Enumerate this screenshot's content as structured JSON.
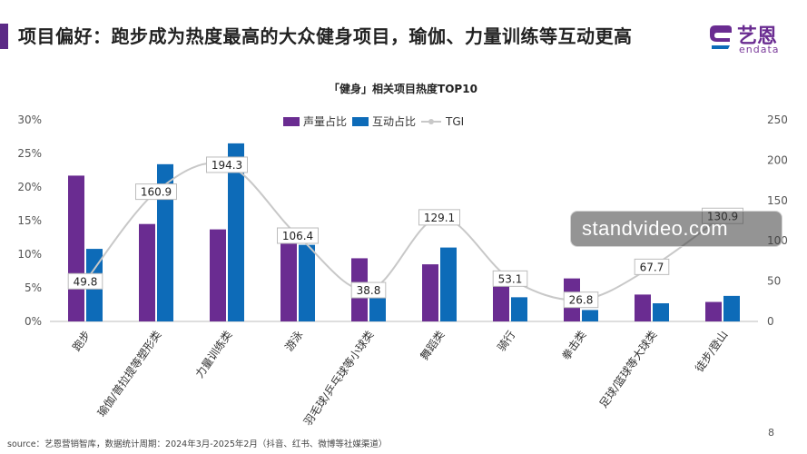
{
  "header": {
    "title": "项目偏好：跑步成为热度最高的大众健身项目，瑜伽、力量训练等互动更高",
    "accent_color": "#5b2a86"
  },
  "logo": {
    "name": "艺恩",
    "subtitle": "endata",
    "icon": "endata-logo-icon"
  },
  "chart_data": {
    "type": "bar",
    "title": "「健身」相关项目热度TOP10",
    "categories": [
      "跑步",
      "瑜伽/普拉提等塑形类",
      "力量训练类",
      "游泳",
      "羽毛球/乒乓球等小球类",
      "舞蹈类",
      "骑行",
      "拳击类",
      "足球/篮球等大球类",
      "徒步/登山"
    ],
    "series": [
      {
        "name": "声量占比",
        "type": "bar",
        "axis": "left",
        "color": "#6a2c91",
        "values": [
          21.7,
          14.5,
          13.7,
          11.7,
          9.4,
          8.5,
          6.9,
          6.4,
          4.0,
          2.9
        ]
      },
      {
        "name": "互动占比",
        "type": "bar",
        "axis": "left",
        "color": "#0d6bb8",
        "values": [
          10.8,
          23.4,
          26.5,
          11.4,
          3.6,
          11.0,
          3.6,
          1.7,
          2.7,
          3.8
        ]
      },
      {
        "name": "TGI",
        "type": "line",
        "axis": "right",
        "color": "#c8c8c8",
        "values": [
          49.8,
          160.9,
          194.3,
          106.4,
          38.8,
          129.1,
          53.1,
          26.8,
          67.7,
          130.9
        ]
      }
    ],
    "left_axis": {
      "ticks": [
        "0%",
        "5%",
        "10%",
        "15%",
        "20%",
        "25%",
        "30%"
      ],
      "range": [
        0,
        30
      ]
    },
    "right_axis": {
      "ticks": [
        "0",
        "50",
        "100",
        "150",
        "200",
        "250"
      ],
      "range": [
        0,
        250
      ]
    },
    "legend_position": "top-center",
    "grid": false
  },
  "footer": {
    "source": "source：艺恩营销智库，数据统计周期：2024年3月-2025年2月（抖音、红书、微博等社媒渠道）",
    "page": "8"
  },
  "watermark": {
    "text": "standvideo.com"
  }
}
